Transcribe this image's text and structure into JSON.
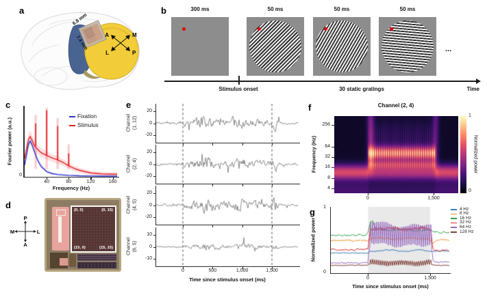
{
  "panels": {
    "a": "a",
    "b": "b",
    "c": "c",
    "d": "d",
    "e": "e",
    "f": "f",
    "g": "g"
  },
  "panel_a": {
    "dim_width": "6.8 mm",
    "dim_height": "7.4 mm",
    "axis": {
      "top_left": "A",
      "top_right": "M",
      "bottom_left": "L",
      "bottom_right": "P"
    }
  },
  "panel_b": {
    "frames": [
      {
        "title": "300 ms",
        "type": "blank",
        "angle": 0
      },
      {
        "title": "50 ms",
        "type": "grating",
        "angle": 135
      },
      {
        "title": "50 ms",
        "type": "grating",
        "angle": 120
      },
      {
        "title": "50 ms",
        "type": "grating",
        "angle": 185
      }
    ],
    "ellipsis": "...",
    "timeline": {
      "stimulus_onset": "Stimulus onset",
      "gratings": "30 static gratings",
      "time": "Time"
    },
    "colors": {
      "screen": "#8d8d8d",
      "stripe_dark": "#2e2e2e",
      "stripe_light": "#f1f1f1",
      "dot": "#e8000b"
    }
  },
  "panel_d": {
    "compass": {
      "up": "P",
      "down": "A",
      "left": "M",
      "right": "L"
    },
    "corners": [
      "(0, 0)",
      "(0, 15)",
      "(15, 0)",
      "(15, 15)"
    ]
  },
  "chart_data": [
    {
      "id": "c",
      "type": "line",
      "xlabel": "Frequency (Hz)",
      "ylabel": "Fourier power (a.u.)",
      "xlim": [
        0,
        168
      ],
      "ylim": [
        0,
        1.08
      ],
      "xticks": [
        40,
        80,
        120,
        160
      ],
      "yticks": [
        "0"
      ],
      "legend": [
        {
          "label": "Fixation",
          "color": "#2f36c9"
        },
        {
          "label": "Stimulus",
          "color": "#e4181d"
        }
      ],
      "series": [
        {
          "name": "Fixation",
          "color": "#2f36c9",
          "band": 0.05,
          "x": [
            0,
            4,
            7,
            10,
            13,
            18,
            24,
            30,
            40,
            50,
            60,
            80,
            100,
            120,
            140,
            168
          ],
          "y": [
            0.18,
            0.36,
            0.5,
            0.55,
            0.5,
            0.38,
            0.25,
            0.16,
            0.08,
            0.05,
            0.035,
            0.022,
            0.015,
            0.012,
            0.01,
            0.01
          ]
        },
        {
          "name": "Stimulus",
          "color": "#e4181d",
          "band": 0.09,
          "x": [
            0,
            4,
            7,
            10,
            13,
            18,
            24,
            30,
            40,
            50,
            60,
            70,
            80,
            90,
            100,
            120,
            140,
            168
          ],
          "y": [
            0.28,
            0.46,
            0.58,
            0.62,
            0.57,
            0.47,
            0.42,
            0.37,
            0.33,
            0.29,
            0.26,
            0.22,
            0.17,
            0.13,
            0.1,
            0.06,
            0.045,
            0.04
          ]
        }
      ],
      "spikes": {
        "series": "Stimulus",
        "freqs": [
          20,
          40,
          60,
          80
        ],
        "heights": [
          0.82,
          1.02,
          0.78,
          0.36
        ],
        "band_heights": [
          0.95,
          1.06,
          0.9,
          0.5
        ]
      }
    },
    {
      "id": "e",
      "type": "line",
      "xlabel": "Time since stimulus onset (ms)",
      "xlim": [
        -450,
        1950
      ],
      "stim_window": [
        0,
        1500
      ],
      "xticks": [
        0,
        500,
        1000,
        1500
      ],
      "xtick_labels": [
        "0",
        "500",
        "1,000",
        "1,500"
      ],
      "trace_color": "#6f6f6f",
      "onset_line_color": "#555555",
      "channels": [
        {
          "label_line1": "Channel",
          "label_line2": "(1, 12)",
          "yticks": [
            "20",
            "0",
            "-20"
          ],
          "ylim": [
            -32,
            32
          ],
          "amp": 1.0,
          "seed": 11
        },
        {
          "label_line1": "Channel",
          "label_line2": "(2, 4)",
          "yticks": [
            "20",
            "0",
            "-20"
          ],
          "ylim": [
            -32,
            32
          ],
          "amp": 1.0,
          "seed": 23
        },
        {
          "label_line1": "Channel",
          "label_line2": "(4, 5)",
          "yticks": [
            "20",
            "0",
            "-20"
          ],
          "ylim": [
            -32,
            32
          ],
          "amp": 1.0,
          "seed": 37
        },
        {
          "label_line1": "Channel",
          "label_line2": "(6, 5)",
          "yticks": [
            "10",
            "0",
            "-10"
          ],
          "ylim": [
            -16,
            16
          ],
          "amp": 0.5,
          "seed": 51
        }
      ]
    },
    {
      "id": "f",
      "type": "heatmap",
      "title": "Channel (2, 4)",
      "ylabel": "Frequency (Hz)",
      "yticks": [
        "256",
        "64",
        "32",
        "16",
        "8",
        "4"
      ],
      "xticks": [
        0,
        1500
      ],
      "xtick_labels": [
        "0",
        "1,500"
      ],
      "xlim": [
        -770,
        2060
      ],
      "colorbar": {
        "label": "Normalized power",
        "ticks": [
          "1",
          "0"
        ]
      },
      "colormap": [
        "#000004",
        "#1c1044",
        "#4f127b",
        "#812581",
        "#b5367a",
        "#e55064",
        "#fb8761",
        "#fec287",
        "#fcfdbf"
      ],
      "features": {
        "baseline_band_hz": [
          8,
          16
        ],
        "stimulus_band_hz": [
          32,
          48
        ],
        "secondary_band_hz": [
          16,
          24
        ],
        "stim_window_ms": [
          0,
          1500
        ],
        "striation_hz": 20
      }
    },
    {
      "id": "g",
      "type": "line",
      "xlabel": "Time since stimulus onset (ms)",
      "ylabel": "Normalized power",
      "xlim": [
        -900,
        1980
      ],
      "ylim": [
        0,
        1
      ],
      "xticks": [
        0,
        1500
      ],
      "xtick_labels": [
        "0",
        "1,500"
      ],
      "yticks": [
        "1",
        "0"
      ],
      "stim_window": [
        0,
        1500
      ],
      "shade_color": "#e9e9e9",
      "series": [
        {
          "name": "4 Hz",
          "color": "#3a7ab8",
          "pre": 0.3,
          "during": 0.335,
          "post": 0.33,
          "osc": 0.0,
          "noise": 0.006,
          "seed": 3
        },
        {
          "name": "8 Hz",
          "color": "#f08c28",
          "pre": 0.49,
          "during": 0.52,
          "post": 0.5,
          "osc": 0.012,
          "noise": 0.008,
          "seed": 5,
          "bump": {
            "t": 1560,
            "amp": -0.06,
            "sigma": 45
          }
        },
        {
          "name": "16 Hz",
          "color": "#2e9e4a",
          "pre": 0.575,
          "during": 0.655,
          "post": 0.615,
          "osc": 0.012,
          "noise": 0.01,
          "seed": 7,
          "bump": {
            "t": 90,
            "amp": 0.13,
            "sigma": 60
          }
        },
        {
          "name": "32 Hz",
          "color": "#d62a28",
          "pre": 0.35,
          "during": 0.68,
          "post": 0.345,
          "osc": 0.022,
          "noise": 0.012,
          "seed": 9
        },
        {
          "name": "128 Hz",
          "color": "#7e3d35",
          "pre": 0.11,
          "during": 0.15,
          "post": 0.11,
          "osc": 0.042,
          "noise": 0.004,
          "seed": 13
        },
        {
          "name": "64 Hz",
          "color": "#9668bd",
          "pre": 0.15,
          "during": 0.6,
          "post": 0.16,
          "osc": 0.19,
          "noise": 0.01,
          "seed": 11
        }
      ],
      "legend_order": [
        "4 Hz",
        "8 Hz",
        "16 Hz",
        "32 Hz",
        "64 Hz",
        "128 Hz"
      ],
      "legend_colors": [
        "#3a7ab8",
        "#f08c28",
        "#2e9e4a",
        "#d62a28",
        "#9668bd",
        "#7e3d35"
      ]
    }
  ]
}
